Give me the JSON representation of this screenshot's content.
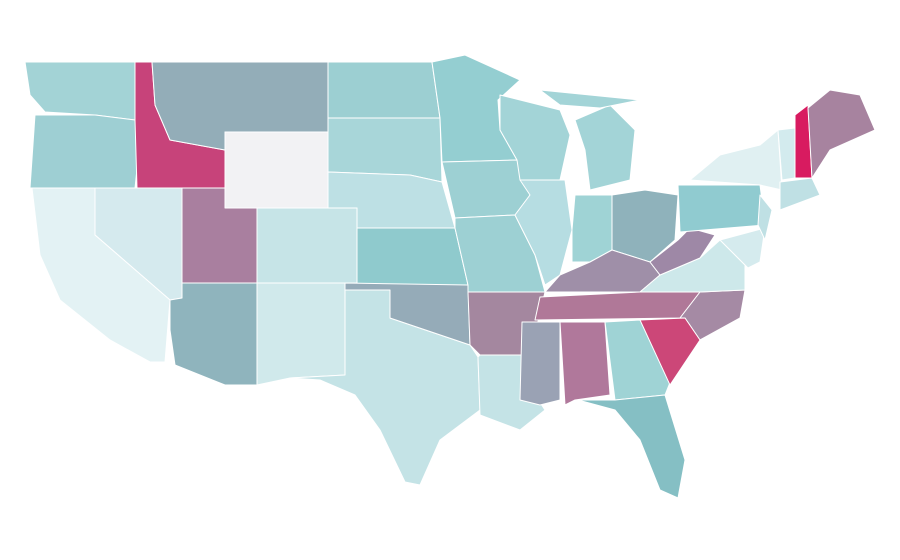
{
  "map": {
    "regions": [
      {
        "color": "#a3d3d6"
      },
      {
        "color": "#9ecfd3"
      },
      {
        "color": "#c7437a"
      },
      {
        "color": "#93adb8"
      },
      {
        "color": "#f2f2f4"
      },
      {
        "color": "#9ccfd2"
      },
      {
        "color": "#a8d6d9"
      },
      {
        "color": "#bde0e4"
      },
      {
        "color": "#c6e4e7"
      },
      {
        "color": "#8fcacd"
      },
      {
        "color": "#a97f9f"
      },
      {
        "color": "#d5eaee"
      },
      {
        "color": "#e3f2f4"
      },
      {
        "color": "#8fb4bd"
      },
      {
        "color": "#d0e9eb"
      },
      {
        "color": "#c4e3e6"
      },
      {
        "color": "#95abb8"
      },
      {
        "color": "#94ced1"
      },
      {
        "color": "#9dd0d3"
      },
      {
        "color": "#9dd0d3"
      },
      {
        "color": "#a4879f"
      },
      {
        "color": "#c4e3e6"
      },
      {
        "color": "#a3d4d7"
      },
      {
        "color": "#b6dde2"
      },
      {
        "color": "#a3d4d7"
      },
      {
        "color": "#a3d4d7"
      },
      {
        "color": "#9fd3d5"
      },
      {
        "color": "#8fb2bb"
      },
      {
        "color": "#9f8fa8"
      },
      {
        "color": "#b07898"
      },
      {
        "color": "#9aa2b4"
      },
      {
        "color": "#b0789b"
      },
      {
        "color": "#9fd3d5"
      },
      {
        "color": "#85bfc4"
      },
      {
        "color": "#a58aa4"
      },
      {
        "color": "#cc4778"
      },
      {
        "color": "#cde8ea"
      },
      {
        "color": "#9e88a6"
      },
      {
        "color": "#90cbd0"
      },
      {
        "color": "#e0f0f2"
      },
      {
        "color": "#d5ebee"
      },
      {
        "color": "#bfe0e4"
      },
      {
        "color": "#d3ebee"
      },
      {
        "color": "#d81b60"
      },
      {
        "color": "#a7839f"
      },
      {
        "color": "#bfe0e4"
      }
    ]
  }
}
